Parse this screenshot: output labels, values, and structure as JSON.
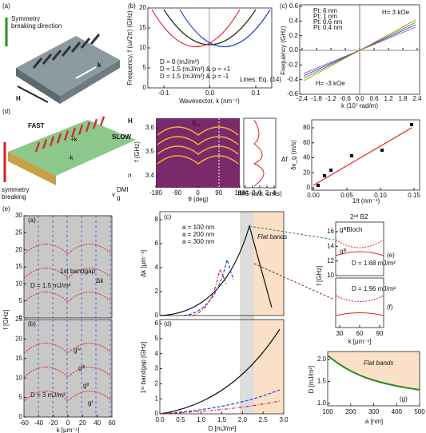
{
  "a": {
    "label": "(a)",
    "dir1": "Symmetry",
    "dir2": "breaking direction",
    "k": "k",
    "H": "H"
  },
  "b": {
    "label": "(b)",
    "ylabel": "Frequency, f (ω/2π) (GHz)",
    "xlabel": "Wavevector, k (nm⁻¹)",
    "yticks": [
      "0",
      "5",
      "10",
      "15",
      "20"
    ],
    "xticks": [
      "-0.1",
      "0.0",
      "0.1"
    ],
    "legend": [
      "D = 0 (mJ/m²)",
      "D = 1.5 (mJ/m²) & p = +1",
      "D = 1.5 (mJ/m²) & p = -1"
    ],
    "note": "Lines: Eq. (14)"
  },
  "c": {
    "label": "(c)",
    "ylabel": "Frequency (GHz)",
    "xlabel": "k (10⁷ rad/m)",
    "yticks": [
      "-0.6",
      "-0.4",
      "-0.2",
      "0.0",
      "0.2",
      "0.4",
      "0.6"
    ],
    "xticks": [
      "-2.4",
      "-1.8",
      "-1.2",
      "-0.6",
      "0.0",
      "0.6",
      "1.2",
      "1.8",
      "2.4"
    ],
    "legend": [
      "Pt: 6 nm",
      "Pt: 1 nm",
      "Pt: 0.6 nm",
      "Pt: 0.4 nm"
    ],
    "field_pos": "H= 3 kOe",
    "field_neg": "H= -3 kOe"
  },
  "d": {
    "label": "(d)",
    "fast": "FAST",
    "slow": "SLOW",
    "k_pos": "+k",
    "k_neg": "-k",
    "H": "H",
    "n": "n",
    "vg": "v",
    "vg_sup": "DMI",
    "vg_sub": "g",
    "sym1": "symmetry",
    "sym2": "breaking",
    "map_label": "S₀₁",
    "ylabel": "f (GHz)",
    "yticks": [
      "3.4",
      "3.5",
      "3.6"
    ],
    "xlabel": "θ (deg)",
    "xticks": [
      "-180",
      "-90",
      "0",
      "90",
      "180"
    ],
    "img_label": "IMG (arb. units)",
    "img_ticks": [
      "-4",
      "-2",
      "0",
      "2",
      "4"
    ],
    "delta_f": "Δf",
    "right_ylabel": "δv_g (m/s)",
    "right_yticks": [
      "0",
      "20",
      "40",
      "60",
      "80"
    ],
    "right_xlabel": "1/t (nm⁻¹)",
    "right_xticks": [
      "0.00",
      "0.05",
      "0.10",
      "0.15"
    ]
  },
  "e": {
    "label": "(e)",
    "pa": {
      "label": "(a)",
      "ylabel": "f [GHz]",
      "yticks": [
        "0",
        "5",
        "10",
        "15",
        "20",
        "25",
        "30"
      ],
      "gap": "1st bandgap",
      "dk": "Δk",
      "D": "D = 1.5 mJ/m²"
    },
    "pb": {
      "label": "(b)",
      "yticks": [
        "0",
        "5",
        "10",
        "15",
        "20",
        "25"
      ],
      "xticks": [
        "-60",
        "-40",
        "-20",
        "0",
        "20",
        "40",
        "60"
      ],
      "xlabel": "k [μm⁻¹]",
      "D": "D = 3 mJ/m²",
      "bands": [
        "gᴵ",
        "gᴵᴵ",
        "gᴵᴵᴵ",
        "gᴵⱽ"
      ]
    },
    "pc": {
      "label": "(c)",
      "ylabel": "Δk [μm⁻¹]",
      "yticks": [
        "0",
        "2",
        "4",
        "6",
        "8"
      ],
      "legend": [
        "a = 100 nm",
        "a = 200 nm",
        "a = 300 nm"
      ],
      "flat": "Flat bands"
    },
    "pd": {
      "label": "(d)",
      "ylabel": "1ˢᵗ bandgap [GHz]",
      "yticks": [
        "0",
        "1",
        "2",
        "3",
        "4",
        "5",
        "6"
      ],
      "xticks": [
        "0.0",
        "0.5",
        "1.0",
        "1.5",
        "2.0",
        "2.5",
        "3.0"
      ],
      "xlabel": "D [mJ/m²]"
    },
    "pe": {
      "label": "(e)",
      "bz": "2ⁿᵈ BZ",
      "g1": "gᴵᴵᴵBloch",
      "g2": "gᴵᴵᴵ",
      "D": "D = 1.68 mJ/m²",
      "ylabel": "f [GHz]",
      "yticks": [
        "10",
        "12",
        "14",
        "16"
      ]
    },
    "pf": {
      "label": "(f)",
      "D": "D = 1.96 mJ/m²",
      "xticks": [
        "30",
        "60",
        "90"
      ],
      "xlabel": "k [μm⁻¹]"
    },
    "pg": {
      "label": "(g)",
      "ylabel": "D [mJ/m²]",
      "yticks": [
        "1.0",
        "1.5",
        "2.0"
      ],
      "xticks": [
        "100",
        "200",
        "300",
        "400",
        "500"
      ],
      "xlabel": "a [nm]",
      "flat": "Flat bands"
    }
  }
}
